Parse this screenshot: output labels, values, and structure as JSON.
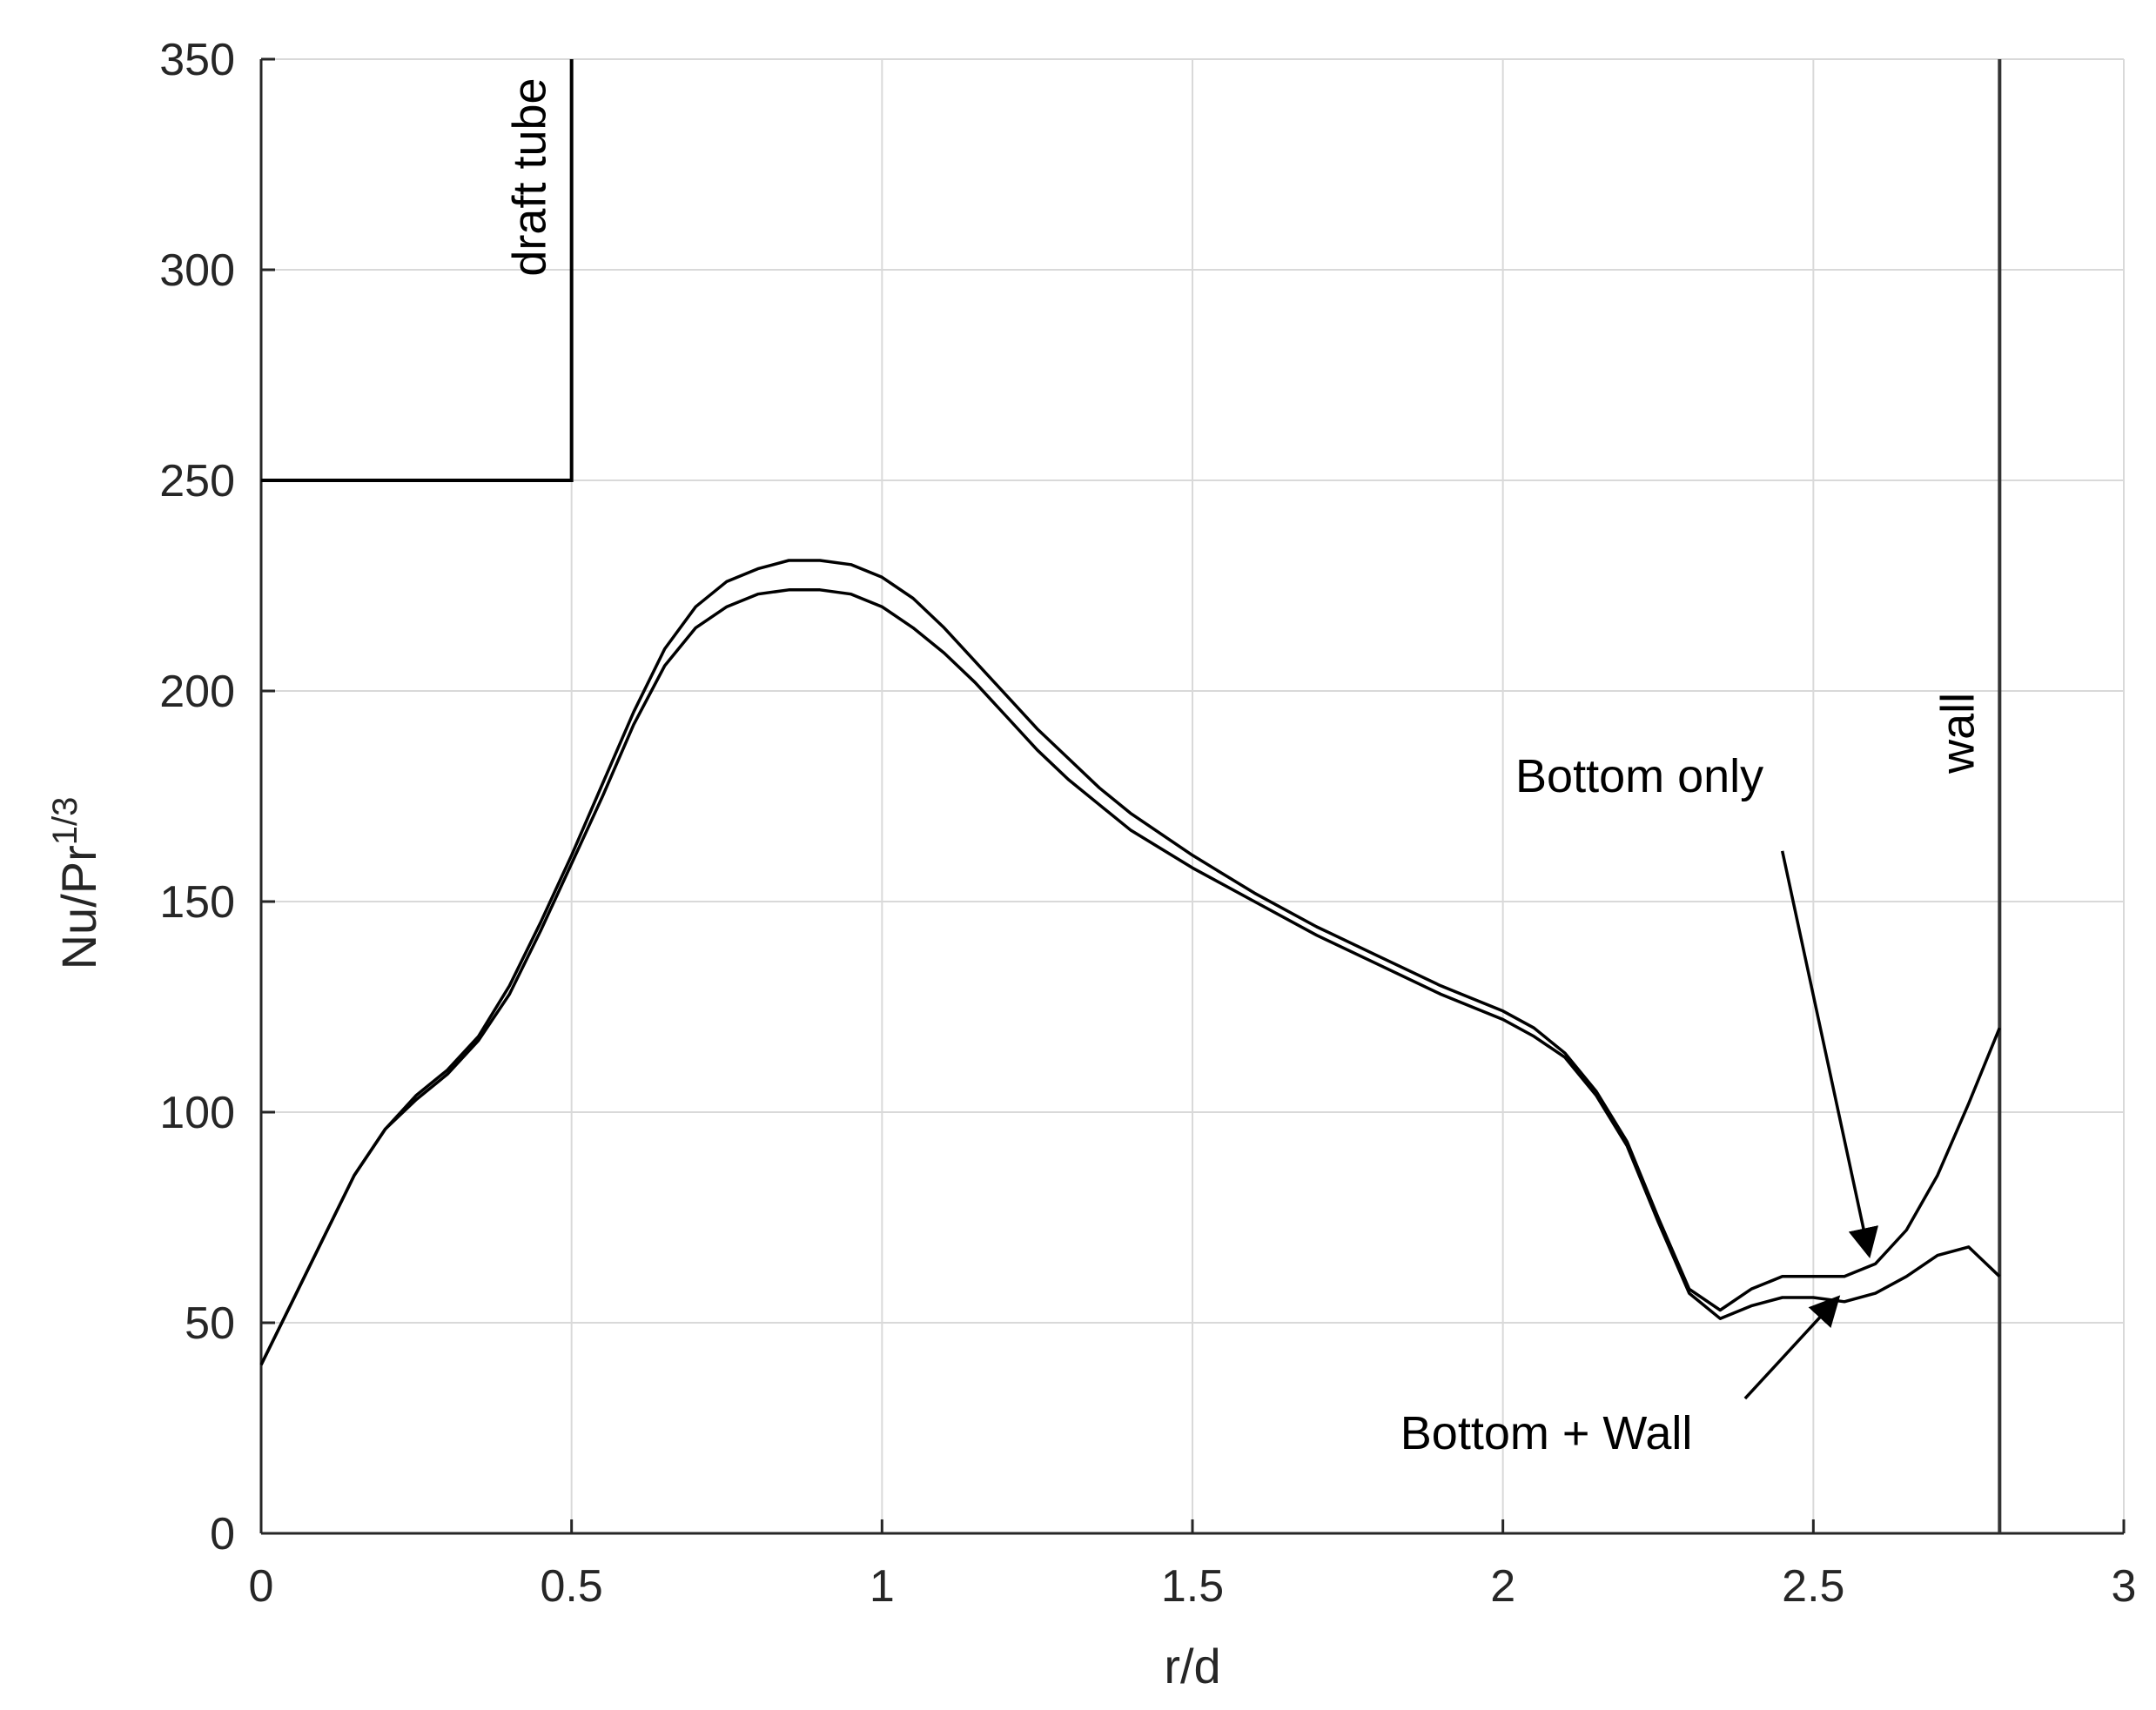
{
  "chart_data": {
    "type": "line",
    "xlabel": "r/d",
    "ylabel": {
      "base": "Nu/Pr",
      "superscript": "1/3"
    },
    "xlim": [
      0,
      3
    ],
    "ylim": [
      0,
      350
    ],
    "xticks": [
      0,
      0.5,
      1,
      1.5,
      2,
      2.5,
      3
    ],
    "xtick_labels": [
      "0",
      "0.5",
      "1",
      "1.5",
      "2",
      "2.5",
      "3"
    ],
    "yticks": [
      0,
      50,
      100,
      150,
      200,
      250,
      300,
      350
    ],
    "ytick_labels": [
      "0",
      "50",
      "100",
      "150",
      "200",
      "250",
      "300",
      "350"
    ],
    "grid": true,
    "colors": {
      "line": "#000000",
      "grid": "#d9d9d9",
      "axis": "#262626"
    },
    "series": [
      {
        "name": "Bottom only",
        "x": [
          0,
          0.05,
          0.1,
          0.15,
          0.2,
          0.25,
          0.3,
          0.35,
          0.4,
          0.45,
          0.5,
          0.55,
          0.6,
          0.65,
          0.7,
          0.75,
          0.8,
          0.85,
          0.9,
          0.95,
          1.0,
          1.05,
          1.1,
          1.15,
          1.2,
          1.25,
          1.3,
          1.35,
          1.4,
          1.5,
          1.6,
          1.7,
          1.8,
          1.9,
          2.0,
          2.05,
          2.1,
          2.15,
          2.2,
          2.25,
          2.3,
          2.35,
          2.4,
          2.45,
          2.5,
          2.55,
          2.6,
          2.65,
          2.7,
          2.75,
          2.8
        ],
        "y": [
          40,
          55,
          70,
          85,
          96,
          104,
          110,
          118,
          130,
          145,
          161,
          178,
          195,
          210,
          220,
          226,
          229,
          231,
          231,
          230,
          227,
          222,
          215,
          207,
          199,
          191,
          184,
          177,
          171,
          161,
          152,
          144,
          137,
          130,
          124,
          120,
          114,
          105,
          93,
          75,
          58,
          53,
          58,
          61,
          61,
          61,
          64,
          72,
          85,
          102,
          120
        ]
      },
      {
        "name": "Bottom + Wall",
        "x": [
          0,
          0.05,
          0.1,
          0.15,
          0.2,
          0.25,
          0.3,
          0.35,
          0.4,
          0.45,
          0.5,
          0.55,
          0.6,
          0.65,
          0.7,
          0.75,
          0.8,
          0.85,
          0.9,
          0.95,
          1.0,
          1.05,
          1.1,
          1.15,
          1.2,
          1.25,
          1.3,
          1.35,
          1.4,
          1.5,
          1.6,
          1.7,
          1.8,
          1.9,
          2.0,
          2.05,
          2.1,
          2.15,
          2.2,
          2.25,
          2.3,
          2.35,
          2.4,
          2.45,
          2.5,
          2.55,
          2.6,
          2.65,
          2.7,
          2.75,
          2.8
        ],
        "y": [
          40,
          55,
          70,
          85,
          96,
          103,
          109,
          117,
          128,
          143,
          159,
          175,
          192,
          206,
          215,
          220,
          223,
          224,
          224,
          223,
          220,
          215,
          209,
          202,
          194,
          186,
          179,
          173,
          167,
          158,
          150,
          142,
          135,
          128,
          122,
          118,
          113,
          104,
          92,
          74,
          57,
          51,
          54,
          56,
          56,
          55,
          57,
          61,
          66,
          68,
          61
        ]
      }
    ],
    "draft_tube": {
      "label": "draft tube",
      "x": 0.5,
      "y_bottom": 250,
      "y_top": 350
    },
    "wall": {
      "label": "wall",
      "x": 2.8
    },
    "annotations": [
      {
        "text": "Bottom only",
        "text_x": 2.22,
        "text_y": 176,
        "arrow_from": [
          2.45,
          162
        ],
        "arrow_to": [
          2.59,
          66
        ]
      },
      {
        "text": "Bottom + Wall",
        "text_x": 2.07,
        "text_y": 20,
        "arrow_from": [
          2.39,
          32
        ],
        "arrow_to": [
          2.54,
          56
        ]
      }
    ]
  }
}
